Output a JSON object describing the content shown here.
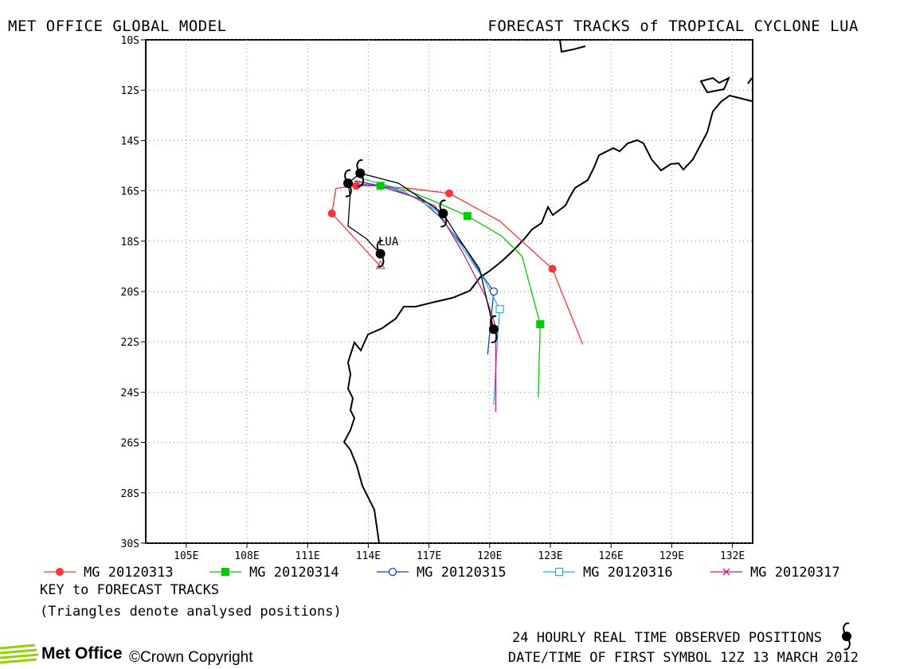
{
  "title_left": "MET OFFICE GLOBAL MODEL",
  "title_right": "FORECAST TRACKS of TROPICAL CYCLONE LUA",
  "map": {
    "lon_range": [
      103,
      133
    ],
    "lat_range": [
      -30,
      -10
    ],
    "lon_ticks": [
      "105E",
      "108E",
      "111E",
      "114E",
      "117E",
      "120E",
      "123E",
      "126E",
      "129E",
      "132E"
    ],
    "lat_ticks": [
      "10S",
      "12S",
      "14S",
      "16S",
      "18S",
      "20S",
      "22S",
      "24S",
      "26S",
      "28S",
      "30S"
    ],
    "storm_label": "LUA",
    "grid": "dotted"
  },
  "legend": [
    {
      "label": "MG 20120313",
      "color": "#ff3333",
      "marker": "filled-circle"
    },
    {
      "label": "MG 20120314",
      "color": "#00cc00",
      "marker": "filled-square"
    },
    {
      "label": "MG 20120315",
      "color": "#1a3fcc",
      "marker": "open-circle"
    },
    {
      "label": "MG 20120316",
      "color": "#33b5cc",
      "marker": "open-square"
    },
    {
      "label": "MG 20120317",
      "color": "#cc1a88",
      "marker": "cross"
    }
  ],
  "key_title": "KEY to FORECAST TRACKS",
  "key_note": "(Triangles denote analysed positions)",
  "observed_text": "24 HOURLY REAL TIME OBSERVED POSITIONS",
  "first_symbol_text": "DATE/TIME OF FIRST SYMBOL 12Z 13 MARCH 2012",
  "logo_text": "Met Office",
  "copyright_text": "©Crown Copyright",
  "icons": {
    "observed": "cyclone-symbol-icon",
    "logo": "met-office-logo-icon"
  }
}
